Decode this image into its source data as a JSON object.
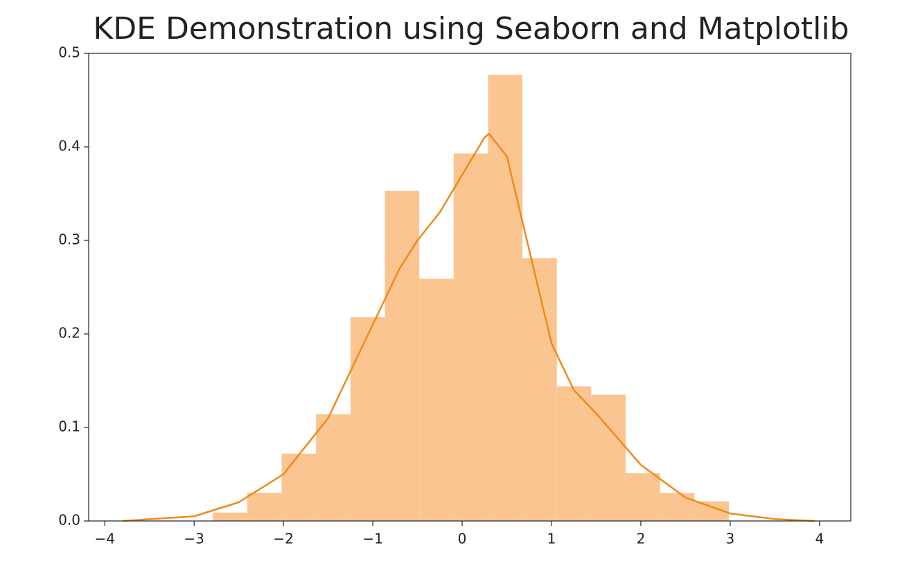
{
  "chart_data": {
    "type": "histogram",
    "title": "KDE Demonstration using Seaborn and Matplotlib",
    "bins": [
      -2.79,
      -2.405,
      -2.02,
      -1.635,
      -1.25,
      -0.865,
      -0.48,
      -0.095,
      0.29,
      0.675,
      1.06,
      1.445,
      1.83,
      2.215,
      2.6,
      2.985
    ],
    "values": [
      0.009,
      0.03,
      0.072,
      0.114,
      0.218,
      0.353,
      0.259,
      0.393,
      0.477,
      0.281,
      0.144,
      0.135,
      0.051,
      0.03,
      0.021
    ],
    "color": "#fac590",
    "kde": {
      "color": "#f0891a",
      "x": [
        -3.8,
        -3.0,
        -2.5,
        -2.0,
        -1.5,
        -1.0,
        -0.7,
        -0.5,
        -0.25,
        0.0,
        0.25,
        0.3,
        0.5,
        0.75,
        1.0,
        1.25,
        1.5,
        2.0,
        2.5,
        3.0,
        3.5,
        3.95
      ],
      "values": [
        0.0,
        0.005,
        0.02,
        0.05,
        0.11,
        0.21,
        0.27,
        0.3,
        0.33,
        0.37,
        0.41,
        0.414,
        0.39,
        0.29,
        0.19,
        0.14,
        0.115,
        0.06,
        0.025,
        0.008,
        0.002,
        0.0
      ]
    },
    "xlim": [
      -4.18,
      4.35
    ],
    "ylim": [
      0,
      0.5
    ],
    "xticks": [
      {
        "value": -4,
        "label": "−4"
      },
      {
        "value": -3,
        "label": "−3"
      },
      {
        "value": -2,
        "label": "−2"
      },
      {
        "value": -1,
        "label": "−1"
      },
      0,
      1,
      2,
      3,
      4
    ],
    "yticks": [
      {
        "value": 0,
        "label": "0.0"
      },
      0.1,
      0.2,
      0.3,
      0.4,
      0.5
    ],
    "grid": false
  }
}
